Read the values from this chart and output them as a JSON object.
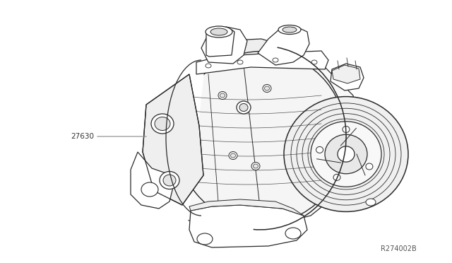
{
  "bg_color": "#ffffff",
  "line_color": "#2a2a2a",
  "label_27630": "27630",
  "label_ref": "R274002B",
  "figsize": [
    6.4,
    3.72
  ],
  "dpi": 100,
  "img_extent": [
    0,
    640,
    0,
    372
  ]
}
